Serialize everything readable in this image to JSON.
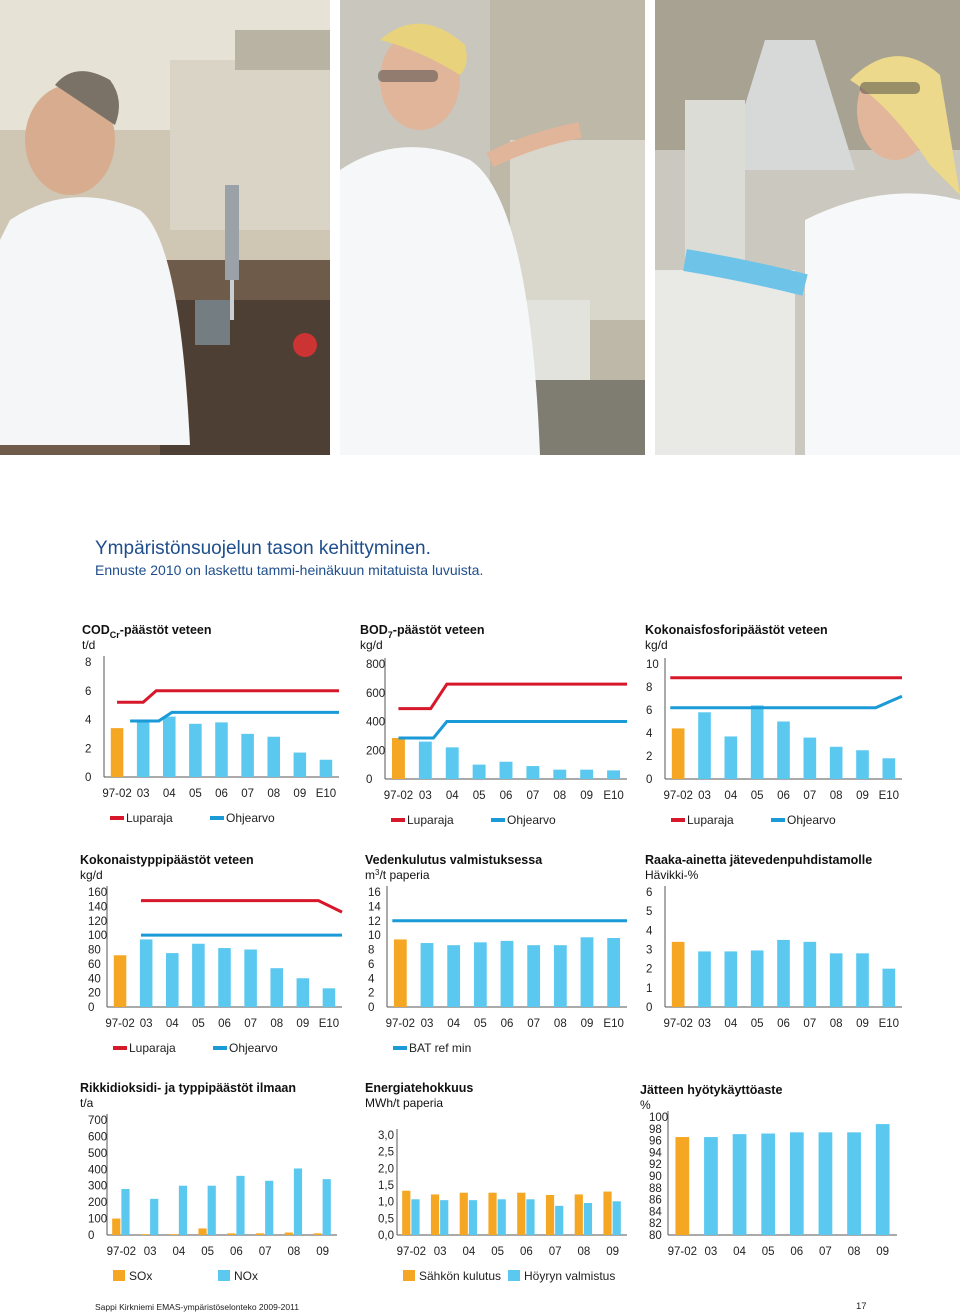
{
  "caption": {
    "title": "Ympäristönsuojelun tason kehittyminen.",
    "subtitle": "Ennuste 2010 on laskettu tammi-heinäkuun mitatuista luvuista."
  },
  "photos": [
    {
      "name": "lab-photo-pipette"
    },
    {
      "name": "lab-photo-instrument"
    },
    {
      "name": "lab-photo-analyzer"
    }
  ],
  "colors": {
    "orange": "#f5a623",
    "blue": "#5bc8f0",
    "red": "#d7182a",
    "lineblue": "#1a9ad6",
    "axis": "#555555"
  },
  "footer": {
    "text": "Sappi Kirkniemi EMAS-ympäristöselonteko 2009-2011",
    "page": "17"
  },
  "chart_data": [
    {
      "type": "bar",
      "title_main": "COD",
      "title_sub": "Cr",
      "title_rest": "-päästöt veteen",
      "unit": "t/d",
      "categories": [
        "97-02",
        "03",
        "04",
        "05",
        "06",
        "07",
        "08",
        "09",
        "E10"
      ],
      "values": [
        3.4,
        3.8,
        4.2,
        3.7,
        3.8,
        3.0,
        2.8,
        1.7,
        1.2
      ],
      "ylim": [
        0,
        8
      ],
      "yticks": [
        "0",
        "2",
        "4",
        "6",
        "8"
      ],
      "lines": [
        {
          "name": "Luparaja",
          "color": "red",
          "points": [
            [
              0,
              5.2
            ],
            [
              1,
              5.2
            ],
            [
              1.5,
              6.0
            ],
            [
              8.5,
              6.0
            ]
          ]
        },
        {
          "name": "Ohjearvo",
          "color": "lineblue",
          "points": [
            [
              0.5,
              3.9
            ],
            [
              1.6,
              3.9
            ],
            [
              2.1,
              4.5
            ],
            [
              8.5,
              4.5
            ]
          ]
        }
      ],
      "legend": [
        "Luparaja",
        "Ohjearvo"
      ]
    },
    {
      "type": "bar",
      "title_main": "BOD",
      "title_sub": "7",
      "title_rest": "-päästöt veteen",
      "unit": "kg/d",
      "categories": [
        "97-02",
        "03",
        "04",
        "05",
        "06",
        "07",
        "08",
        "09",
        "E10"
      ],
      "values": [
        285,
        260,
        220,
        100,
        120,
        90,
        65,
        65,
        60
      ],
      "ylim": [
        0,
        800
      ],
      "yticks": [
        "0",
        "200",
        "400",
        "600",
        "800"
      ],
      "lines": [
        {
          "name": "Luparaja",
          "color": "red",
          "points": [
            [
              0,
              490
            ],
            [
              1.2,
              490
            ],
            [
              1.8,
              660
            ],
            [
              8.5,
              660
            ]
          ]
        },
        {
          "name": "Ohjearvo",
          "color": "lineblue",
          "points": [
            [
              0,
              285
            ],
            [
              1.3,
              285
            ],
            [
              1.8,
              400
            ],
            [
              8.5,
              400
            ]
          ]
        }
      ],
      "legend": [
        "Luparaja",
        "Ohjearvo"
      ]
    },
    {
      "type": "bar",
      "title_main": "Kokonaisfosforipäästöt veteen",
      "unit": "kg/d",
      "categories": [
        "97-02",
        "03",
        "04",
        "05",
        "06",
        "07",
        "08",
        "09",
        "E10"
      ],
      "values": [
        4.4,
        5.8,
        3.7,
        6.4,
        5.0,
        3.6,
        2.8,
        2.5,
        1.8
      ],
      "ylim": [
        0,
        10
      ],
      "yticks": [
        "0",
        "2",
        "4",
        "6",
        "8",
        "10"
      ],
      "lines": [
        {
          "name": "Luparaja",
          "color": "red",
          "points": [
            [
              -0.3,
              8.8
            ],
            [
              8.5,
              8.8
            ]
          ]
        },
        {
          "name": "Ohjearvo",
          "color": "lineblue",
          "points": [
            [
              -0.3,
              6.2
            ],
            [
              7.5,
              6.2
            ],
            [
              8.5,
              7.2
            ]
          ]
        }
      ],
      "legend": [
        "Luparaja",
        "Ohjearvo"
      ]
    },
    {
      "type": "bar",
      "title_main": "Kokonaistyppipäästöt veteen",
      "unit": "kg/d",
      "categories": [
        "97-02",
        "03",
        "04",
        "05",
        "06",
        "07",
        "08",
        "09",
        "E10"
      ],
      "values": [
        72,
        94,
        75,
        88,
        82,
        80,
        54,
        40,
        26
      ],
      "ylim": [
        0,
        160
      ],
      "yticks": [
        "0",
        "20",
        "40",
        "60",
        "80",
        "100",
        "120",
        "140",
        "160"
      ],
      "lines": [
        {
          "name": "Luparaja",
          "color": "red",
          "points": [
            [
              0.8,
              148
            ],
            [
              7.6,
              148
            ],
            [
              8.5,
              132
            ]
          ]
        },
        {
          "name": "Ohjearvo",
          "color": "lineblue",
          "points": [
            [
              0.8,
              100
            ],
            [
              8.5,
              100
            ]
          ]
        }
      ],
      "legend": [
        "Luparaja",
        "Ohjearvo"
      ]
    },
    {
      "type": "bar",
      "title_main": "Vedenkulutus valmistuksessa",
      "unit_main": "m",
      "unit_sup": "3",
      "unit_rest": "/t paperia",
      "categories": [
        "97-02",
        "03",
        "04",
        "05",
        "06",
        "07",
        "08",
        "09",
        "E10"
      ],
      "values": [
        9.4,
        8.9,
        8.6,
        9.0,
        9.2,
        8.6,
        8.6,
        9.7,
        9.6
      ],
      "ylim": [
        0,
        16
      ],
      "yticks": [
        "0",
        "2",
        "4",
        "6",
        "8",
        "10",
        "12",
        "14",
        "16"
      ],
      "lines": [
        {
          "name": "BAT ref min",
          "color": "lineblue",
          "points": [
            [
              -0.3,
              12
            ],
            [
              8.5,
              12
            ]
          ]
        }
      ],
      "legend": [
        "BAT ref min"
      ]
    },
    {
      "type": "bar",
      "title_main": "Raaka-ainetta jätevedenpuhdistamolle",
      "unit": "Hävikki-%",
      "categories": [
        "97-02",
        "03",
        "04",
        "05",
        "06",
        "07",
        "08",
        "09",
        "E10"
      ],
      "values": [
        3.4,
        2.9,
        2.9,
        2.95,
        3.5,
        3.4,
        2.8,
        2.8,
        2.0
      ],
      "ylim": [
        0,
        6
      ],
      "yticks": [
        "0",
        "1",
        "2",
        "3",
        "4",
        "5",
        "6"
      ],
      "lines": [],
      "legend": []
    },
    {
      "type": "bar",
      "title_main": "Rikkidioksidi- ja typpipäästöt ilmaan",
      "unit": "t/a",
      "categories": [
        "97-02",
        "03",
        "04",
        "05",
        "06",
        "07",
        "08",
        "09"
      ],
      "series": [
        {
          "name": "SOx",
          "color": "orange",
          "values": [
            100,
            5,
            5,
            40,
            10,
            10,
            15,
            10
          ]
        },
        {
          "name": "NOx",
          "color": "blue",
          "values": [
            280,
            220,
            300,
            300,
            360,
            330,
            405,
            340
          ]
        }
      ],
      "ylim": [
        0,
        700
      ],
      "yticks": [
        "0",
        "100",
        "200",
        "300",
        "400",
        "500",
        "600",
        "700"
      ],
      "legend": [
        "SOx",
        "NOx"
      ]
    },
    {
      "type": "bar",
      "title_main": "Energiatehokkuus",
      "unit": "MWh/t paperia",
      "categories": [
        "97-02",
        "03",
        "04",
        "05",
        "06",
        "07",
        "08",
        "09"
      ],
      "series": [
        {
          "name": "Sähkön kulutus",
          "color": "orange",
          "values": [
            1.55,
            1.42,
            1.48,
            1.48,
            1.48,
            1.4,
            1.42,
            1.52
          ]
        },
        {
          "name": "Höyryn valmistus",
          "color": "blue",
          "values": [
            1.25,
            1.22,
            1.22,
            1.25,
            1.25,
            1.02,
            1.12,
            1.18
          ]
        }
      ],
      "ylim": [
        0,
        3.5
      ],
      "yticks": [
        "0,0",
        "0,5",
        "1,0",
        "1,5",
        "2,0",
        "2,5",
        "3,0"
      ],
      "legend": [
        "Sähkön kulutus",
        "Höyryn valmistus"
      ]
    },
    {
      "type": "bar",
      "title_main": "Jätteen hyötykäyttöaste",
      "unit": "%",
      "categories": [
        "97-02",
        "03",
        "04",
        "05",
        "06",
        "07",
        "08",
        "09"
      ],
      "values": [
        96.6,
        96.6,
        97.1,
        97.2,
        97.4,
        97.4,
        97.4,
        98.8
      ],
      "ylim": [
        80,
        100
      ],
      "yticks": [
        "80",
        "82",
        "84",
        "86",
        "88",
        "90",
        "92",
        "94",
        "96",
        "98",
        "100"
      ],
      "legend": []
    }
  ]
}
